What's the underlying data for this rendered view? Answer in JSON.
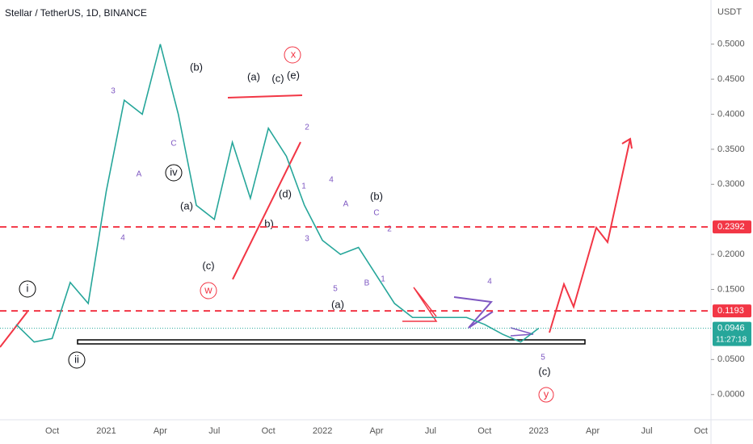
{
  "chart_data": {
    "type": "line",
    "title": "Stellar / TetherUS, 1D, BINANCE",
    "y_axis_label": "USDT",
    "categories": [
      null,
      null,
      "Oct",
      null,
      null,
      "2021",
      null,
      null,
      "Apr",
      null,
      null,
      "Jul",
      null,
      null,
      "Oct",
      null,
      null,
      "2022",
      null,
      null,
      "Apr",
      null,
      null,
      "Jul",
      null,
      null,
      "Oct",
      null,
      null,
      "2023",
      null,
      null,
      "Apr",
      null,
      null,
      "Jul",
      null,
      null,
      "Oct",
      null
    ],
    "values": [
      0.1,
      0.075,
      0.08,
      0.16,
      0.13,
      0.29,
      0.42,
      0.4,
      0.5,
      0.4,
      0.27,
      0.25,
      0.36,
      0.28,
      0.38,
      0.34,
      0.27,
      0.22,
      0.2,
      0.21,
      0.17,
      0.13,
      0.11,
      0.11,
      0.11,
      0.11,
      0.1,
      0.086,
      0.075,
      0.0946,
      null,
      null,
      null,
      null,
      null,
      null,
      null,
      null,
      null,
      null
    ],
    "color": "#26a69a",
    "ylim": [
      -0.036,
      0.563
    ],
    "yticks": [
      {
        "value": 0,
        "label": "0.0000"
      },
      {
        "value": 0.05,
        "label": "0.0500"
      },
      {
        "value": 0.15,
        "label": "0.1500"
      },
      {
        "value": 0.2,
        "label": "0.2000"
      },
      {
        "value": 0.3,
        "label": "0.3000"
      },
      {
        "value": 0.35,
        "label": "0.3500"
      },
      {
        "value": 0.4,
        "label": "0.4000"
      },
      {
        "value": 0.45,
        "label": "0.4500"
      },
      {
        "value": 0.5,
        "label": "0.5000"
      }
    ],
    "levels": [
      {
        "value": 0.2392,
        "color": "#f23645"
      },
      {
        "value": 0.1193,
        "color": "#f23645"
      }
    ],
    "last_price": 0.0946,
    "countdown": "11:27:18",
    "annotations": [
      "(b)",
      "(a)",
      "(c)",
      "w",
      "iv",
      "(a)",
      "(c)",
      "(e)",
      "x",
      "(d)",
      "b)",
      "(b)",
      "(a)",
      "(c)",
      "y",
      "i",
      "ii",
      "3",
      "4",
      "A",
      "C",
      "2",
      "4",
      "1",
      "3",
      "5",
      "A",
      "C",
      "2",
      "B",
      "1",
      "4",
      "5"
    ]
  }
}
